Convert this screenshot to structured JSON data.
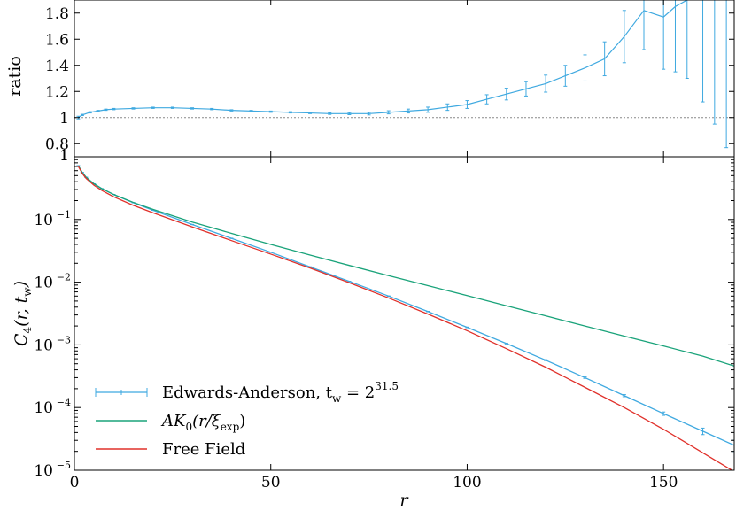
{
  "chart_data": [
    {
      "type": "line",
      "panel": "ratio",
      "ylabel": "ratio",
      "xlim": [
        0,
        168
      ],
      "ylim": [
        0.7,
        1.9
      ],
      "yticks": [
        "0.8",
        "1",
        "1.2",
        "1.4",
        "1.6",
        "1.8"
      ],
      "ytick_values": [
        0.8,
        1.0,
        1.2,
        1.4,
        1.6,
        1.8
      ],
      "reference_line": 1.0,
      "series": [
        {
          "color": "#3fa9e0",
          "x": [
            1,
            2,
            4,
            6,
            8,
            10,
            15,
            20,
            25,
            30,
            35,
            40,
            45,
            50,
            55,
            60,
            65,
            70,
            75,
            80,
            85,
            90,
            95,
            100,
            105,
            110,
            115,
            120,
            125,
            130,
            135,
            140,
            145,
            150,
            153,
            156,
            160,
            163,
            166
          ],
          "y": [
            1.0,
            1.02,
            1.04,
            1.05,
            1.06,
            1.065,
            1.07,
            1.075,
            1.075,
            1.07,
            1.065,
            1.055,
            1.05,
            1.045,
            1.04,
            1.035,
            1.03,
            1.03,
            1.03,
            1.04,
            1.05,
            1.06,
            1.08,
            1.1,
            1.14,
            1.18,
            1.22,
            1.26,
            1.32,
            1.38,
            1.45,
            1.62,
            1.82,
            1.77,
            1.85,
            1.9,
            1.92,
            1.95,
            1.97
          ],
          "err": [
            0.01,
            0.005,
            0.005,
            0.005,
            0.005,
            0.005,
            0.005,
            0.005,
            0.005,
            0.005,
            0.005,
            0.005,
            0.005,
            0.005,
            0.005,
            0.005,
            0.006,
            0.008,
            0.01,
            0.012,
            0.015,
            0.02,
            0.025,
            0.03,
            0.035,
            0.045,
            0.055,
            0.065,
            0.08,
            0.1,
            0.13,
            0.2,
            0.3,
            0.4,
            0.5,
            0.6,
            0.8,
            1.0,
            1.2
          ]
        }
      ]
    },
    {
      "type": "line",
      "panel": "main",
      "xlabel": "r",
      "ylabel": "C4(r, tw)",
      "yscale": "log",
      "xlim": [
        0,
        168
      ],
      "ylim": [
        1e-05,
        1
      ],
      "xticks": [
        "0",
        "50",
        "100",
        "150"
      ],
      "xtick_values": [
        0,
        50,
        100,
        150
      ],
      "legend_position": "lower-left",
      "series": [
        {
          "name": "Edwards-Anderson, t_w = 2^31.5",
          "color": "#3fa9e0",
          "x": [
            1,
            2,
            3,
            5,
            7,
            10,
            15,
            20,
            30,
            40,
            50,
            60,
            70,
            80,
            90,
            100,
            110,
            120,
            130,
            140,
            150,
            160,
            168
          ],
          "y": [
            0.72,
            0.56,
            0.47,
            0.37,
            0.31,
            0.25,
            0.185,
            0.14,
            0.083,
            0.05,
            0.03,
            0.0175,
            0.0103,
            0.006,
            0.0034,
            0.0019,
            0.00105,
            0.00057,
            0.0003,
            0.000155,
            8e-05,
            4.2e-05,
            2.5e-05
          ],
          "err": [
            0.002,
            0.002,
            0.002,
            0.001,
            0.001,
            0.001,
            0.001,
            0.0008,
            0.0005,
            0.0003,
            0.0002,
            0.0001,
            6e-05,
            4e-05,
            3e-05,
            2e-05,
            1.5e-05,
            1e-05,
            8e-06,
            6e-06,
            5e-06,
            5e-06,
            5e-06
          ]
        },
        {
          "name": "AK0(r/ξexp)",
          "color": "#1aa37a",
          "x": [
            1,
            2,
            3,
            5,
            7,
            10,
            15,
            20,
            30,
            40,
            50,
            60,
            70,
            80,
            90,
            100,
            110,
            120,
            130,
            140,
            150,
            160,
            168
          ],
          "y": [
            0.72,
            0.56,
            0.47,
            0.37,
            0.31,
            0.25,
            0.187,
            0.145,
            0.091,
            0.06,
            0.04,
            0.027,
            0.0185,
            0.0127,
            0.0088,
            0.0061,
            0.0042,
            0.0029,
            0.002,
            0.00138,
            0.00096,
            0.00066,
            0.00046
          ]
        },
        {
          "name": "Free Field",
          "color": "#e0302a",
          "x": [
            1,
            2,
            3,
            5,
            7,
            10,
            15,
            20,
            30,
            40,
            50,
            60,
            70,
            80,
            90,
            100,
            110,
            120,
            130,
            140,
            150,
            160,
            168
          ],
          "y": [
            0.7,
            0.54,
            0.45,
            0.35,
            0.29,
            0.23,
            0.168,
            0.128,
            0.076,
            0.046,
            0.028,
            0.0168,
            0.0098,
            0.0056,
            0.0031,
            0.00168,
            0.00087,
            0.00044,
            0.00021,
            0.0001,
            4.5e-05,
            1.9e-05,
            9.5e-06
          ]
        }
      ],
      "legend_entries": [
        "Edwards-Anderson, t",
        "AK",
        "(r/ξ",
        "Free Field"
      ]
    }
  ],
  "labels": {
    "ratio_ylabel": "ratio",
    "ratio_top_tick_partial": "1",
    "main_ylabel_C": "C",
    "main_ylabel_sub": "4",
    "main_ylabel_rest": "(r, t",
    "main_ylabel_w": "w",
    "main_ylabel_close": ")",
    "xlabel": "r",
    "yticks_main_base": "10",
    "yticks_main_exp": [
      "−1",
      "−2",
      "−3",
      "−4",
      "−5"
    ],
    "yticks_main_top": "1",
    "legend_ea_text": "Edwards-Anderson, t",
    "legend_ea_sub": "w",
    "legend_ea_eq": " = 2",
    "legend_ea_sup": "31.5",
    "legend_ak_text": "AK",
    "legend_ak_sub0": "0",
    "legend_ak_rest": "(r/ξ",
    "legend_ak_sub": "exp",
    "legend_ak_close": ")",
    "legend_ff_text": "Free Field"
  }
}
